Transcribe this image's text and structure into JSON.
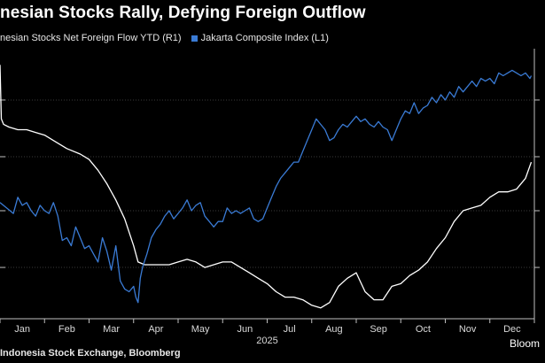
{
  "chart_data": {
    "type": "line",
    "title": "nesian Stocks Rally, Defying Foreign Outflow",
    "xlabel": "2025",
    "source": "Indonesia Stock Exchange, Bloomberg",
    "brand": "Bloom",
    "x_ticks": [
      "Jan",
      "Feb",
      "Mar",
      "Apr",
      "May",
      "Jun",
      "Jul",
      "Aug",
      "Sep",
      "Oct",
      "Nov",
      "Dec"
    ],
    "x_tick_positions": [
      0.5,
      1.5,
      2.5,
      3.5,
      4.5,
      5.5,
      6.5,
      7.5,
      8.5,
      9.5,
      10.5,
      11.5
    ],
    "xlim": [
      0,
      12
    ],
    "ylim_index": [
      0,
      1
    ],
    "y_ticks_index": [
      0.19,
      0.4,
      0.6,
      0.81
    ],
    "grid": true,
    "series": [
      {
        "name": "nesian Stocks Net Foreign Flow YTD (R1)",
        "axis": "R1",
        "color": "#ffffff",
        "x": [
          0,
          0.03,
          0.08,
          0.2,
          0.4,
          0.6,
          0.8,
          1.0,
          1.2,
          1.5,
          1.8,
          2.0,
          2.2,
          2.4,
          2.6,
          2.8,
          3.0,
          3.1,
          3.25,
          3.4,
          3.6,
          3.8,
          4.0,
          4.2,
          4.4,
          4.6,
          4.8,
          5.0,
          5.2,
          5.4,
          5.6,
          5.8,
          6.0,
          6.2,
          6.4,
          6.6,
          6.8,
          7.0,
          7.2,
          7.4,
          7.6,
          7.8,
          8.0,
          8.2,
          8.4,
          8.6,
          8.8,
          9.0,
          9.2,
          9.4,
          9.6,
          9.8,
          10.0,
          10.2,
          10.4,
          10.6,
          10.8,
          11.0,
          11.2,
          11.4,
          11.6,
          11.8,
          11.93
        ],
        "y": [
          0.94,
          0.74,
          0.72,
          0.71,
          0.7,
          0.7,
          0.69,
          0.68,
          0.66,
          0.63,
          0.61,
          0.59,
          0.55,
          0.5,
          0.44,
          0.37,
          0.27,
          0.21,
          0.2,
          0.2,
          0.2,
          0.2,
          0.21,
          0.22,
          0.21,
          0.19,
          0.2,
          0.21,
          0.21,
          0.19,
          0.17,
          0.15,
          0.13,
          0.1,
          0.08,
          0.08,
          0.07,
          0.05,
          0.04,
          0.06,
          0.12,
          0.15,
          0.17,
          0.1,
          0.07,
          0.07,
          0.12,
          0.13,
          0.16,
          0.18,
          0.21,
          0.26,
          0.3,
          0.36,
          0.4,
          0.41,
          0.42,
          0.45,
          0.47,
          0.47,
          0.48,
          0.52,
          0.58
        ]
      },
      {
        "name": "Jakarta Composite Index (L1)",
        "axis": "L1",
        "color": "#3a7bd5",
        "x": [
          0,
          0.15,
          0.3,
          0.4,
          0.5,
          0.6,
          0.7,
          0.8,
          0.9,
          1.0,
          1.1,
          1.2,
          1.3,
          1.4,
          1.5,
          1.6,
          1.7,
          1.8,
          1.9,
          2.0,
          2.1,
          2.2,
          2.3,
          2.4,
          2.5,
          2.6,
          2.7,
          2.8,
          2.9,
          3.0,
          3.05,
          3.1,
          3.15,
          3.2,
          3.3,
          3.4,
          3.5,
          3.6,
          3.7,
          3.8,
          3.9,
          4.0,
          4.1,
          4.2,
          4.3,
          4.4,
          4.5,
          4.6,
          4.7,
          4.8,
          4.9,
          5.0,
          5.1,
          5.2,
          5.3,
          5.4,
          5.5,
          5.6,
          5.7,
          5.8,
          5.9,
          6.0,
          6.1,
          6.2,
          6.3,
          6.4,
          6.5,
          6.6,
          6.7,
          6.8,
          6.9,
          7.0,
          7.1,
          7.2,
          7.3,
          7.4,
          7.5,
          7.6,
          7.7,
          7.8,
          7.9,
          8.0,
          8.1,
          8.2,
          8.3,
          8.4,
          8.5,
          8.6,
          8.7,
          8.8,
          8.9,
          9.0,
          9.1,
          9.2,
          9.3,
          9.4,
          9.5,
          9.6,
          9.7,
          9.8,
          9.9,
          10.0,
          10.1,
          10.2,
          10.3,
          10.4,
          10.5,
          10.6,
          10.7,
          10.8,
          10.9,
          11.0,
          11.1,
          11.2,
          11.3,
          11.4,
          11.5,
          11.6,
          11.7,
          11.8,
          11.9,
          11.93
        ],
        "y": [
          0.43,
          0.41,
          0.39,
          0.45,
          0.42,
          0.43,
          0.4,
          0.38,
          0.42,
          0.4,
          0.39,
          0.43,
          0.38,
          0.29,
          0.3,
          0.27,
          0.34,
          0.3,
          0.26,
          0.27,
          0.24,
          0.21,
          0.3,
          0.25,
          0.18,
          0.27,
          0.14,
          0.11,
          0.1,
          0.12,
          0.08,
          0.06,
          0.15,
          0.19,
          0.24,
          0.3,
          0.33,
          0.35,
          0.38,
          0.4,
          0.37,
          0.39,
          0.41,
          0.44,
          0.4,
          0.42,
          0.43,
          0.38,
          0.36,
          0.34,
          0.36,
          0.36,
          0.41,
          0.39,
          0.4,
          0.39,
          0.4,
          0.41,
          0.37,
          0.36,
          0.37,
          0.41,
          0.45,
          0.49,
          0.52,
          0.54,
          0.56,
          0.58,
          0.58,
          0.62,
          0.66,
          0.7,
          0.74,
          0.72,
          0.7,
          0.66,
          0.67,
          0.7,
          0.72,
          0.71,
          0.73,
          0.75,
          0.73,
          0.74,
          0.72,
          0.71,
          0.73,
          0.71,
          0.7,
          0.66,
          0.7,
          0.74,
          0.77,
          0.76,
          0.8,
          0.76,
          0.78,
          0.79,
          0.82,
          0.8,
          0.83,
          0.81,
          0.84,
          0.82,
          0.86,
          0.84,
          0.86,
          0.88,
          0.86,
          0.89,
          0.88,
          0.89,
          0.87,
          0.91,
          0.9,
          0.91,
          0.92,
          0.91,
          0.9,
          0.91,
          0.89,
          0.9
        ]
      }
    ]
  }
}
